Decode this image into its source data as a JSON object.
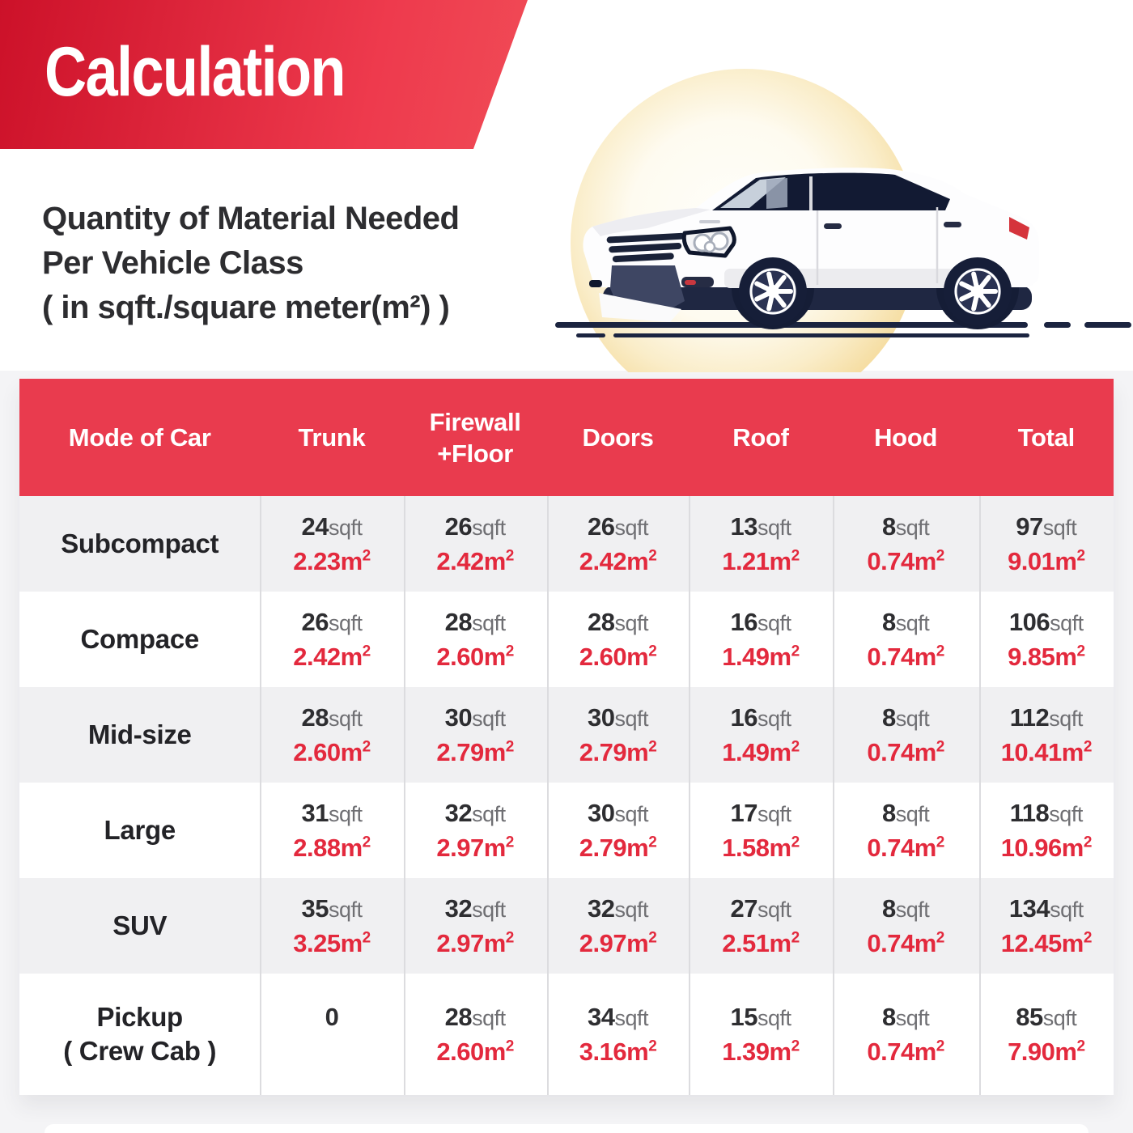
{
  "banner": {
    "title": "Calculation",
    "bg_color_left": "#cc1129",
    "bg_color_right": "#f04b56"
  },
  "subtitle": {
    "line1": "Quantity of Material Needed",
    "line2": "Per Vehicle Class",
    "line3": "( in sqft./square meter(m²) )"
  },
  "illustration": {
    "name": "white-hatchback-car-with-sun-circle"
  },
  "colors": {
    "header_red": "#e93b4e",
    "value_red": "#e3293d",
    "dark_text": "#2e2e31",
    "unit_gray": "#6f6f73",
    "row_alt_gray": "#f0f0f2",
    "car_navy": "#1b2440",
    "sun_yellow": "#f5dc9f"
  },
  "table": {
    "units": {
      "sqft": "sqft",
      "m": "m",
      "sup": "2"
    },
    "header": [
      "Mode of Car",
      "Trunk",
      "Firewall\n+Floor",
      "Doors",
      "Roof",
      "Hood",
      "Total"
    ],
    "rows": [
      {
        "label": "Subcompact",
        "cells": [
          {
            "v": "24",
            "m": "2.23"
          },
          {
            "v": "26",
            "m": "2.42"
          },
          {
            "v": "26",
            "m": "2.42"
          },
          {
            "v": "13",
            "m": "1.21"
          },
          {
            "v": "8",
            "m": "0.74"
          },
          {
            "v": "97",
            "m": "9.01"
          }
        ]
      },
      {
        "label": "Compace",
        "cells": [
          {
            "v": "26",
            "m": "2.42"
          },
          {
            "v": "28",
            "m": "2.60"
          },
          {
            "v": "28",
            "m": "2.60"
          },
          {
            "v": "16",
            "m": "1.49"
          },
          {
            "v": "8",
            "m": "0.74"
          },
          {
            "v": "106",
            "m": "9.85"
          }
        ]
      },
      {
        "label": "Mid-size",
        "cells": [
          {
            "v": "28",
            "m": "2.60"
          },
          {
            "v": "30",
            "m": "2.79"
          },
          {
            "v": "30",
            "m": "2.79"
          },
          {
            "v": "16",
            "m": "1.49"
          },
          {
            "v": "8",
            "m": "0.74"
          },
          {
            "v": "112",
            "m": "10.41"
          }
        ]
      },
      {
        "label": "Large",
        "cells": [
          {
            "v": "31",
            "m": "2.88"
          },
          {
            "v": "32",
            "m": "2.97"
          },
          {
            "v": "30",
            "m": "2.79"
          },
          {
            "v": "17",
            "m": "1.58"
          },
          {
            "v": "8",
            "m": "0.74"
          },
          {
            "v": "118",
            "m": "10.96"
          }
        ]
      },
      {
        "label": "SUV",
        "cells": [
          {
            "v": "35",
            "m": "3.25"
          },
          {
            "v": "32",
            "m": "2.97"
          },
          {
            "v": "32",
            "m": "2.97"
          },
          {
            "v": "27",
            "m": "2.51"
          },
          {
            "v": "8",
            "m": "0.74"
          },
          {
            "v": "134",
            "m": "12.45"
          }
        ]
      },
      {
        "label": "Pickup\n( Crew Cab )",
        "cells": [
          {
            "v": "0",
            "m": ""
          },
          {
            "v": "28",
            "m": "2.60"
          },
          {
            "v": "34",
            "m": "3.16"
          },
          {
            "v": "15",
            "m": "1.39"
          },
          {
            "v": "8",
            "m": "0.74"
          },
          {
            "v": "85",
            "m": "7.90"
          }
        ]
      }
    ]
  }
}
